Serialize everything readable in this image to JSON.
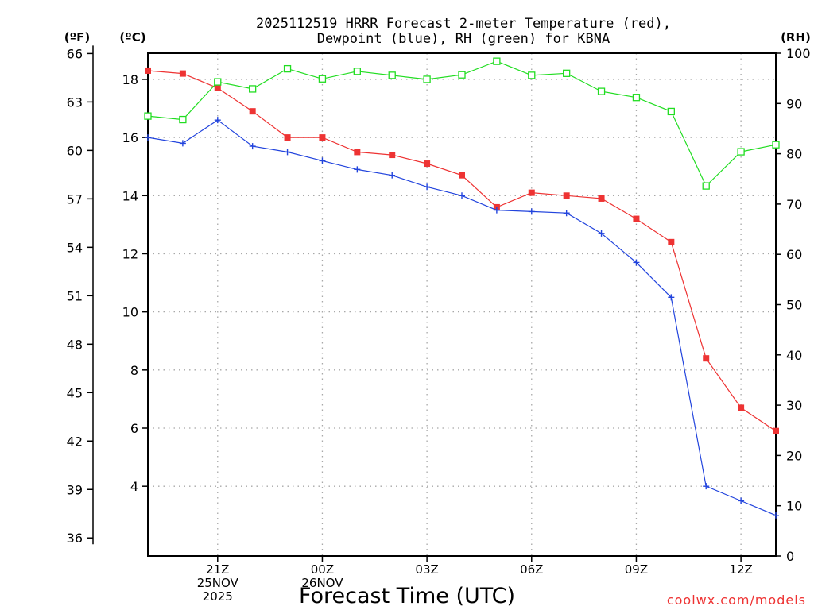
{
  "chart_data": {
    "type": "line",
    "title_line1": "2025112519 HRRR Forecast 2-meter Temperature (red),",
    "title_line2": "Dewpoint (blue), RH (green) for KBNA",
    "xlabel": "Forecast Time (UTC)",
    "watermark": "coolwx.com/models",
    "unit_labels": {
      "fahrenheit": "(ºF)",
      "celsius": "(ºC)",
      "rh": "(RH)"
    },
    "x_range": [
      19,
      37
    ],
    "x_ticks": [
      {
        "x": 21,
        "lines": [
          "21Z",
          "25NOV",
          "2025"
        ]
      },
      {
        "x": 24,
        "lines": [
          "00Z",
          "26NOV"
        ]
      },
      {
        "x": 27,
        "lines": [
          "03Z"
        ]
      },
      {
        "x": 30,
        "lines": [
          "06Z"
        ]
      },
      {
        "x": 33,
        "lines": [
          "09Z"
        ]
      },
      {
        "x": 36,
        "lines": [
          "12Z"
        ]
      }
    ],
    "celsius_range": [
      1.6,
      18.9
    ],
    "celsius_ticks": [
      "4",
      "6",
      "8",
      "10",
      "12",
      "14",
      "16",
      "18"
    ],
    "fahrenheit_ticks": [
      "36",
      "39",
      "42",
      "45",
      "48",
      "51",
      "54",
      "57",
      "60",
      "63",
      "66"
    ],
    "rh_range": [
      0,
      100
    ],
    "rh_ticks": [
      "0",
      "10",
      "20",
      "30",
      "40",
      "50",
      "60",
      "70",
      "80",
      "90",
      "100"
    ],
    "x": [
      19,
      20,
      21,
      22,
      23,
      24,
      25,
      26,
      27,
      28,
      29,
      30,
      31,
      32,
      33,
      34,
      35,
      36,
      37
    ],
    "series": [
      {
        "name": "2-meter Temperature",
        "axis": "celsius",
        "color": "#ee3333",
        "marker": "filled-square",
        "values": [
          18.3,
          18.2,
          17.7,
          16.9,
          16.0,
          16.0,
          15.5,
          15.4,
          15.1,
          14.7,
          13.6,
          14.1,
          14.0,
          13.9,
          13.2,
          12.4,
          8.4,
          6.7,
          5.9
        ]
      },
      {
        "name": "Dewpoint",
        "axis": "celsius",
        "color": "#2244dd",
        "marker": "plus",
        "values": [
          16.0,
          15.8,
          16.6,
          15.7,
          15.5,
          15.2,
          14.9,
          14.7,
          14.3,
          14.0,
          13.5,
          13.45,
          13.4,
          12.7,
          11.7,
          10.5,
          4.0,
          3.5,
          3.0
        ]
      },
      {
        "name": "RH",
        "axis": "rh",
        "color": "#22dd22",
        "marker": "open-square",
        "values": [
          87.5,
          86.8,
          94.3,
          92.9,
          96.9,
          94.9,
          96.4,
          95.6,
          94.8,
          95.7,
          98.4,
          95.6,
          96.0,
          92.4,
          91.2,
          88.4,
          73.6,
          80.4,
          81.8
        ]
      }
    ]
  }
}
